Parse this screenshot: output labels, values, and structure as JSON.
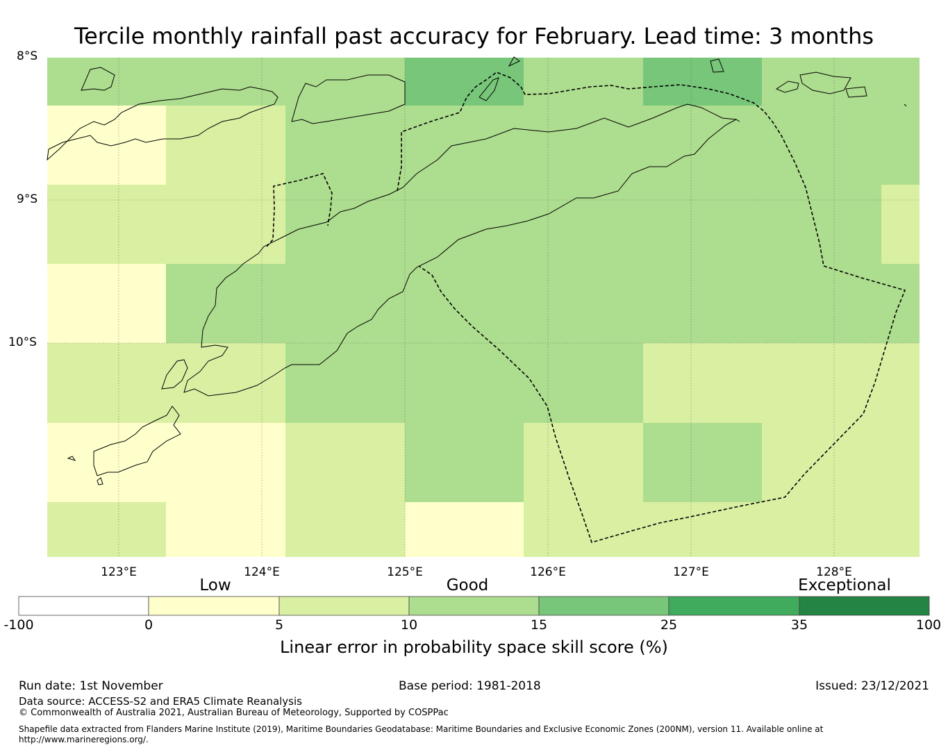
{
  "title": "Tercile monthly rainfall past accuracy for February. Lead time: 3 months",
  "map": {
    "lat_labels": [
      "8°S",
      "9°S",
      "10°S"
    ],
    "lon_labels": [
      "123°E",
      "124°E",
      "125°E",
      "126°E",
      "127°E",
      "128°E"
    ],
    "lon_range": [
      122.5,
      128.6
    ],
    "lat_range": [
      -8.0,
      -11.5
    ],
    "grid_cells": [
      [
        3,
        3,
        3,
        4,
        3,
        4,
        3
      ],
      [
        1,
        2,
        3,
        3,
        3,
        3,
        3
      ],
      [
        2,
        2,
        3,
        3,
        3,
        3,
        3
      ],
      [
        1,
        3,
        3,
        3,
        3,
        3,
        3
      ],
      [
        2,
        2,
        3,
        3,
        3,
        2,
        2
      ],
      [
        1,
        1,
        2,
        3,
        2,
        3,
        2
      ],
      [
        2,
        1,
        2,
        1,
        2,
        2,
        2
      ]
    ]
  },
  "colorbar": {
    "category_labels": [
      "Low",
      "Good",
      "Exceptional"
    ],
    "tick_labels": [
      "-100",
      "0",
      "5",
      "10",
      "15",
      "25",
      "35",
      "100"
    ],
    "colors": [
      "#ffffff",
      "#ffffcc",
      "#d9f0a3",
      "#addd8e",
      "#78c679",
      "#41ab5d",
      "#238443"
    ],
    "title": "Linear error in probability space skill score (%)"
  },
  "footer": {
    "run_date": "Run date: 1st November",
    "base_period": "Base period: 1981-2018",
    "issued": "Issued: 23/12/2021",
    "data_source": "Data source: ACCESS-S2 and ERA5 Climate Reanalysis",
    "copyright": "© Commonwealth of Australia 2021, Australian Bureau of Meteorology, Supported by COSPPac",
    "shapefile_line1": "Shapefile data extracted from Flanders Marine Institute (2019), Maritime Boundaries Geodatabase: Maritime Boundaries and Exclusive Economic Zones (200NM), version 11. Available online at",
    "shapefile_line2": "http://www.marineregions.org/."
  }
}
